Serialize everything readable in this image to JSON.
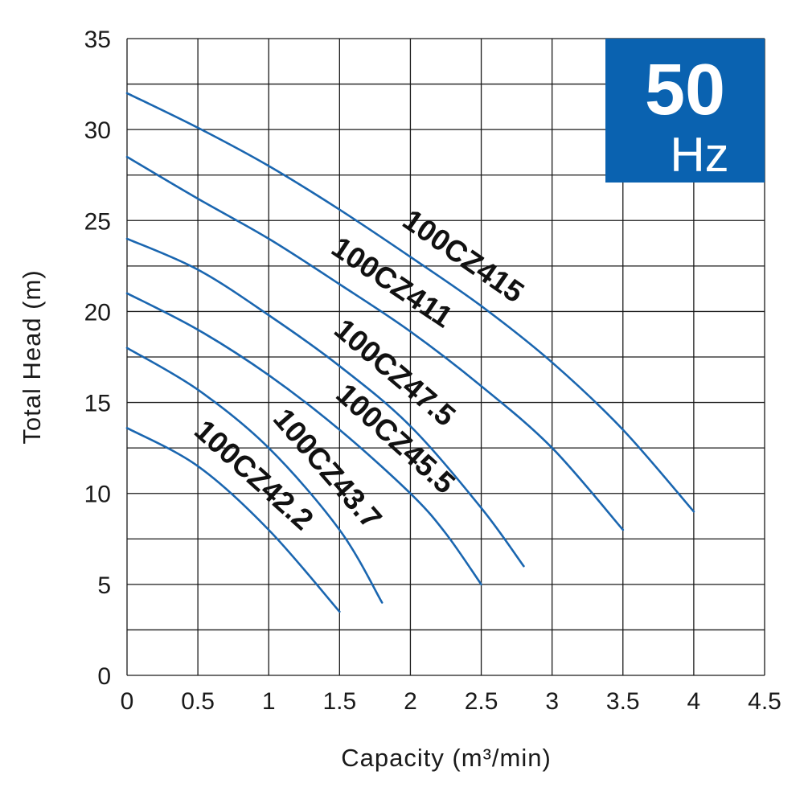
{
  "chart_data": {
    "type": "line",
    "title": "",
    "xlabel": "Capacity (m³/min)",
    "ylabel": "Total Head (m)",
    "xlim": [
      0,
      4.5
    ],
    "ylim": [
      0,
      35
    ],
    "x_ticks": [
      "0",
      "0.5",
      "1",
      "1.5",
      "2",
      "2.5",
      "3",
      "3.5",
      "4",
      "4.5"
    ],
    "y_ticks": [
      "0",
      "5",
      "10",
      "15",
      "20",
      "25",
      "30",
      "35"
    ],
    "grid": true,
    "line_color": "#1a66b0",
    "badge": {
      "value": "50",
      "unit": "Hz",
      "color": "#0a62b0"
    },
    "series": [
      {
        "name": "100CZ415",
        "x": [
          0,
          0.5,
          1,
          1.5,
          2,
          2.5,
          3,
          3.5,
          4
        ],
        "y": [
          32,
          30.1,
          28,
          25.6,
          23,
          20.3,
          17.2,
          13.5,
          9
        ]
      },
      {
        "name": "100CZ411",
        "x": [
          0,
          0.5,
          1,
          1.5,
          2,
          2.5,
          3,
          3.5
        ],
        "y": [
          28.5,
          26.2,
          24,
          21.5,
          18.9,
          15.9,
          12.5,
          8
        ]
      },
      {
        "name": "100CZ47.5",
        "x": [
          0,
          0.5,
          1,
          1.5,
          2,
          2.5,
          2.8
        ],
        "y": [
          24,
          22.3,
          19.8,
          17,
          13.7,
          9.2,
          6
        ]
      },
      {
        "name": "100CZ45.5",
        "x": [
          0,
          0.5,
          1,
          1.5,
          2,
          2.25,
          2.5
        ],
        "y": [
          21,
          19,
          16.5,
          13.5,
          10,
          7.8,
          5
        ]
      },
      {
        "name": "100CZ43.7",
        "x": [
          0,
          0.5,
          1,
          1.5,
          1.8
        ],
        "y": [
          18,
          15.7,
          12.5,
          8,
          4
        ]
      },
      {
        "name": "100CZ42.2",
        "x": [
          0,
          0.5,
          1,
          1.5
        ],
        "y": [
          13.6,
          11.5,
          8,
          3.5
        ]
      }
    ]
  }
}
